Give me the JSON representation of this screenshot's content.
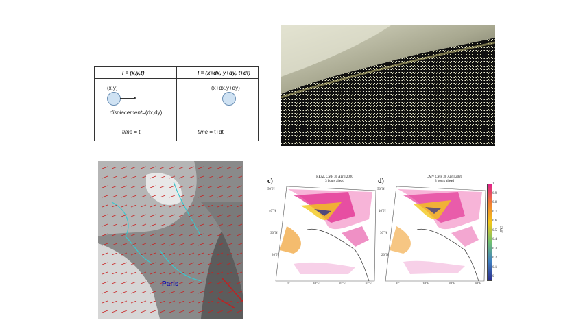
{
  "diagram": {
    "left_header": "I = (x,y,t)",
    "right_header": "I = (x+dx, y+dy, t+dt)",
    "left_point": "(x,y)",
    "right_point": "(x+dx,y+dy)",
    "displacement_word": "displacement",
    "displacement_value": "=(dx,dy)",
    "time_word": "time",
    "left_time": "= t",
    "right_time": "= t+dt"
  },
  "wind_map": {
    "city": "Paris"
  },
  "cmf": {
    "panel_c_label": "c)",
    "panel_d_label": "d)",
    "panel_c_title_1": "REAL CMF 30 April 2020",
    "panel_c_title_2": "3 hours ahead",
    "panel_d_title_1": "CMV CMF 30 April 2020",
    "panel_d_title_2": "3 hours ahead",
    "colorbar_ticks": [
      "1",
      "0.9",
      "0.8",
      "0.7",
      "0.6",
      "0.5",
      "0.4",
      "0.3",
      "0.2",
      "0.1",
      "0"
    ],
    "colorbar_label": "CMF",
    "lat_ticks": [
      "50°N",
      "40°N",
      "30°N",
      "20°N"
    ],
    "lon_ticks": [
      "0°",
      "10°E",
      "20°E",
      "30°E"
    ],
    "colors": {
      "low": "#2b2f8f",
      "mid": "#f2c71a",
      "high": "#e0228c"
    }
  }
}
